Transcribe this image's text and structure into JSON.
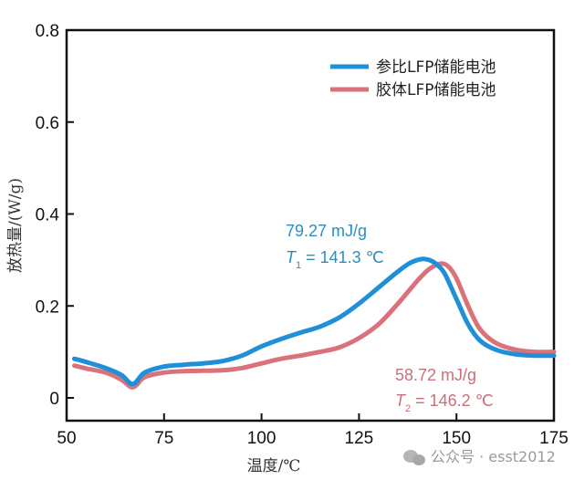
{
  "chart_data": {
    "type": "line",
    "title": "",
    "xlabel": "温度/℃",
    "ylabel": "放热量/(W/g)",
    "xlim": [
      50,
      175
    ],
    "ylim": [
      -0.05,
      0.8
    ],
    "xticks": [
      "50",
      "75",
      "100",
      "125",
      "150",
      "175"
    ],
    "yticks": [
      "0",
      "0.2",
      "0.4",
      "0.6",
      "0.8"
    ],
    "legend_position": "top-right",
    "series": [
      {
        "name": "参比LFP储能电池",
        "color": "#1f8fd8",
        "x": [
          52,
          55,
          60,
          64,
          67,
          70,
          75,
          80,
          85,
          90,
          95,
          100,
          105,
          110,
          115,
          120,
          125,
          130,
          135,
          138,
          141,
          143,
          145,
          147,
          150,
          153,
          156,
          160,
          165,
          170,
          175
        ],
        "y": [
          0.085,
          0.078,
          0.065,
          0.05,
          0.03,
          0.055,
          0.068,
          0.072,
          0.075,
          0.08,
          0.092,
          0.112,
          0.128,
          0.142,
          0.155,
          0.175,
          0.205,
          0.24,
          0.275,
          0.293,
          0.302,
          0.3,
          0.29,
          0.27,
          0.215,
          0.16,
          0.125,
          0.105,
          0.095,
          0.092,
          0.092
        ]
      },
      {
        "name": "胶体LFP储能电池",
        "color": "#d9727a",
        "x": [
          52,
          55,
          60,
          64,
          67,
          70,
          75,
          80,
          85,
          90,
          95,
          100,
          105,
          110,
          115,
          120,
          125,
          130,
          135,
          140,
          143,
          146,
          148,
          150,
          153,
          156,
          160,
          165,
          170,
          175
        ],
        "y": [
          0.07,
          0.064,
          0.055,
          0.04,
          0.023,
          0.045,
          0.055,
          0.058,
          0.059,
          0.06,
          0.065,
          0.075,
          0.085,
          0.092,
          0.1,
          0.11,
          0.13,
          0.16,
          0.205,
          0.255,
          0.28,
          0.292,
          0.285,
          0.26,
          0.2,
          0.15,
          0.12,
          0.105,
          0.1,
          0.1
        ]
      }
    ],
    "annotations": [
      {
        "line1": "79.27 mJ/g",
        "t_symbol": "T",
        "t_sub": "1",
        "t_rest": " = 141.3 ℃"
      },
      {
        "line1": "58.72 mJ/g",
        "t_symbol": "T",
        "t_sub": "2",
        "t_rest": " = 146.2 ℃"
      }
    ]
  },
  "watermark": "公众号 · esst2012"
}
